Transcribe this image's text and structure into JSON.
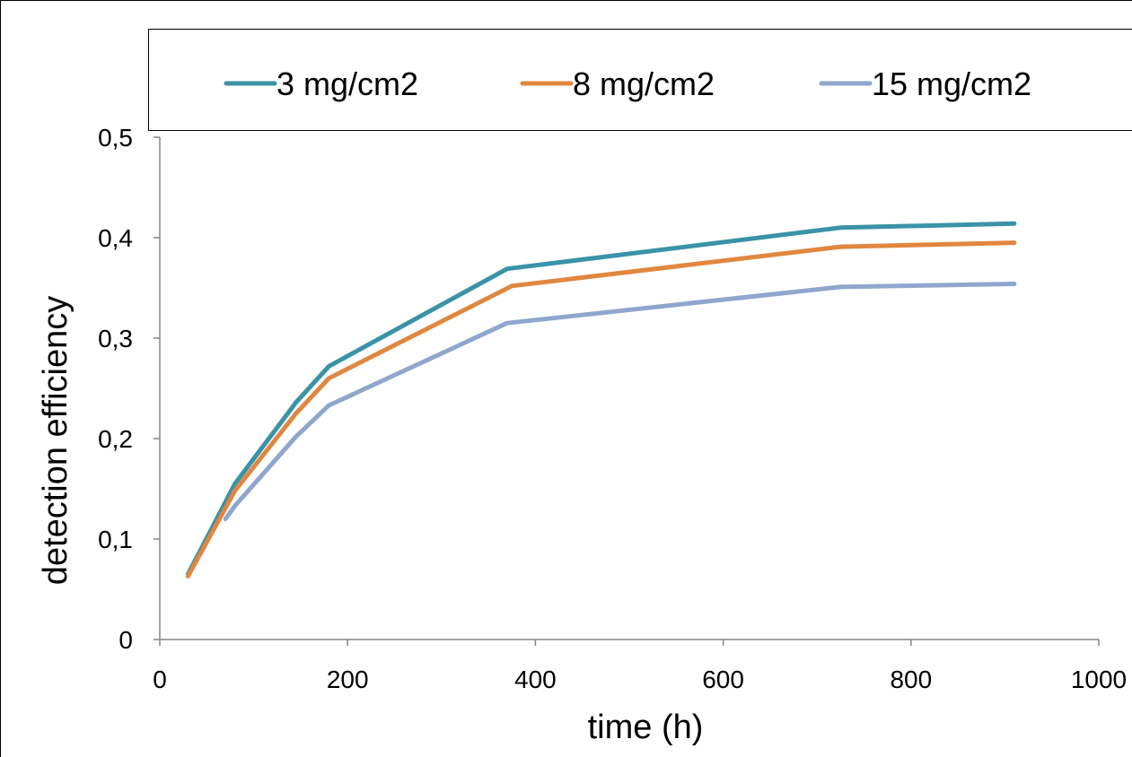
{
  "chart_data": {
    "type": "line",
    "title": "",
    "xlabel": "time (h)",
    "ylabel": "detection efficiency",
    "xlim": [
      0,
      1000
    ],
    "ylim": [
      0,
      0.5
    ],
    "x_ticks": [
      0,
      200,
      400,
      600,
      800,
      1000
    ],
    "x_tick_labels": [
      "0",
      "200",
      "400",
      "600",
      "800",
      "1000"
    ],
    "y_ticks": [
      0,
      0.1,
      0.2,
      0.3,
      0.4,
      0.5
    ],
    "y_tick_labels": [
      "0",
      "0,1",
      "0,2",
      "0,3",
      "0,4",
      "0,5"
    ],
    "grid": false,
    "legend_position": "top",
    "series": [
      {
        "name": "3 mg/cm2",
        "color": "#3a93a6",
        "points": [
          [
            30,
            0.065
          ],
          [
            80,
            0.155
          ],
          [
            145,
            0.236
          ],
          [
            180,
            0.272
          ],
          [
            370,
            0.369
          ],
          [
            725,
            0.41
          ],
          [
            910,
            0.414
          ]
        ]
      },
      {
        "name": "8 mg/cm2",
        "color": "#e08740",
        "points": [
          [
            30,
            0.063
          ],
          [
            80,
            0.148
          ],
          [
            145,
            0.225
          ],
          [
            180,
            0.26
          ],
          [
            375,
            0.352
          ],
          [
            725,
            0.391
          ],
          [
            910,
            0.395
          ]
        ]
      },
      {
        "name": "15 mg/cm2",
        "color": "#8fa7cc",
        "points": [
          [
            70,
            0.12
          ],
          [
            80,
            0.133
          ],
          [
            145,
            0.202
          ],
          [
            180,
            0.233
          ],
          [
            370,
            0.315
          ],
          [
            725,
            0.351
          ],
          [
            910,
            0.354
          ]
        ]
      }
    ]
  }
}
